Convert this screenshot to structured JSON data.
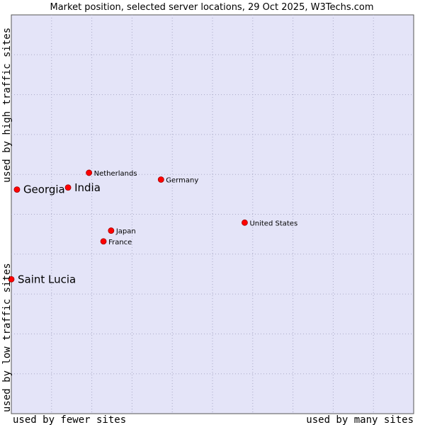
{
  "chart_data": {
    "type": "scatter",
    "title": "Market position, selected server locations, 29 Oct 2025, W3Techs.com",
    "xlabel_low": "used by fewer sites",
    "xlabel_high": "used by many sites",
    "ylabel_low": "used by low traffic sites",
    "ylabel_high": "used by high traffic sites",
    "xlim": [
      0,
      100
    ],
    "ylim": [
      0,
      100
    ],
    "grid": true,
    "colors": {
      "plot_bg": "#e4e4f8",
      "grid": "#a9a9c6",
      "point": "#ff0000",
      "point_edge": "#a00000"
    },
    "points": [
      {
        "label": "Netherlands",
        "x": 19.3,
        "y": 60.4,
        "size": "small"
      },
      {
        "label": "Georgia",
        "x": 1.4,
        "y": 56.2,
        "size": "large"
      },
      {
        "label": "India",
        "x": 14.1,
        "y": 56.7,
        "size": "large"
      },
      {
        "label": "Germany",
        "x": 37.2,
        "y": 58.7,
        "size": "small"
      },
      {
        "label": "United States",
        "x": 58.0,
        "y": 47.9,
        "size": "small"
      },
      {
        "label": "Japan",
        "x": 24.8,
        "y": 45.9,
        "size": "small"
      },
      {
        "label": "France",
        "x": 22.9,
        "y": 43.2,
        "size": "small"
      },
      {
        "label": "Saint Lucia",
        "x": 0.0,
        "y": 33.7,
        "size": "large"
      }
    ]
  }
}
